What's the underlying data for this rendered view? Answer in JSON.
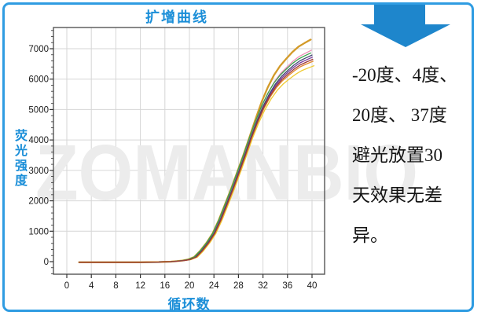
{
  "title": "扩增曲线",
  "watermark": "ZOMANBIO",
  "side_panel": {
    "arrow_color": "#1e86cc",
    "lines": [
      "-20度、4度、",
      "20度、 37度",
      "避光放置30",
      "天效果无差",
      "异。"
    ]
  },
  "chart_data": {
    "type": "line",
    "title": "扩增曲线",
    "xlabel": "循环数",
    "ylabel": "荧光强度",
    "x_ticks": [
      0,
      4,
      8,
      12,
      16,
      20,
      24,
      28,
      32,
      36,
      40
    ],
    "y_ticks": [
      0,
      1000,
      2000,
      3000,
      4000,
      5000,
      6000,
      7000
    ],
    "xlim": [
      -2.2,
      42
    ],
    "ylim": [
      -420,
      7700
    ],
    "grid": true,
    "legend": false,
    "cycles": [
      2,
      3,
      4,
      5,
      6,
      7,
      8,
      9,
      10,
      11,
      12,
      13,
      14,
      15,
      16,
      17,
      18,
      19,
      20,
      21,
      22,
      23,
      24,
      25,
      26,
      27,
      28,
      29,
      30,
      31,
      32,
      33,
      34,
      35,
      36,
      37,
      38,
      39,
      40
    ],
    "shape": [
      0,
      0,
      0,
      0,
      0,
      0,
      0,
      0,
      0,
      0,
      0,
      0.0003,
      0.0005,
      0.001,
      0.002,
      0.003,
      0.005,
      0.008,
      0.013,
      0.025,
      0.055,
      0.092,
      0.137,
      0.2,
      0.273,
      0.347,
      0.427,
      0.507,
      0.592,
      0.672,
      0.745,
      0.805,
      0.855,
      0.893,
      0.922,
      0.949,
      0.971,
      0.986,
      1.0
    ],
    "baseline": -20,
    "base_plateau": 6900,
    "series": [
      {
        "name": "goldenrod",
        "color": "#d39a28",
        "plateau": 7300,
        "x_shift": -0.22,
        "width": 2.3,
        "z": 0
      },
      {
        "name": "pink",
        "color": "#f08cb8",
        "plateau": 6950,
        "x_shift": -0.1,
        "width": 1.3,
        "z": 3
      },
      {
        "name": "green",
        "color": "#3aa14b",
        "plateau": 6860,
        "x_shift": -0.2,
        "width": 1.3,
        "z": 6
      },
      {
        "name": "navy",
        "color": "#434a72",
        "plateau": 6790,
        "x_shift": 0,
        "width": 1.3,
        "z": 5
      },
      {
        "name": "purple",
        "color": "#7a3b9b",
        "plateau": 6720,
        "x_shift": 0.05,
        "width": 1.3,
        "z": 4
      },
      {
        "name": "dark-red",
        "color": "#9c3a3a",
        "plateau": 6650,
        "x_shift": 0.12,
        "width": 1.3,
        "z": 7
      },
      {
        "name": "orange",
        "color": "#e2882e",
        "plateau": 6590,
        "x_shift": 0.18,
        "width": 1.3,
        "z": 2
      },
      {
        "name": "yellow",
        "color": "#efcb31",
        "plateau": 6440,
        "x_shift": 0.32,
        "width": 1.3,
        "z": 1
      }
    ]
  }
}
